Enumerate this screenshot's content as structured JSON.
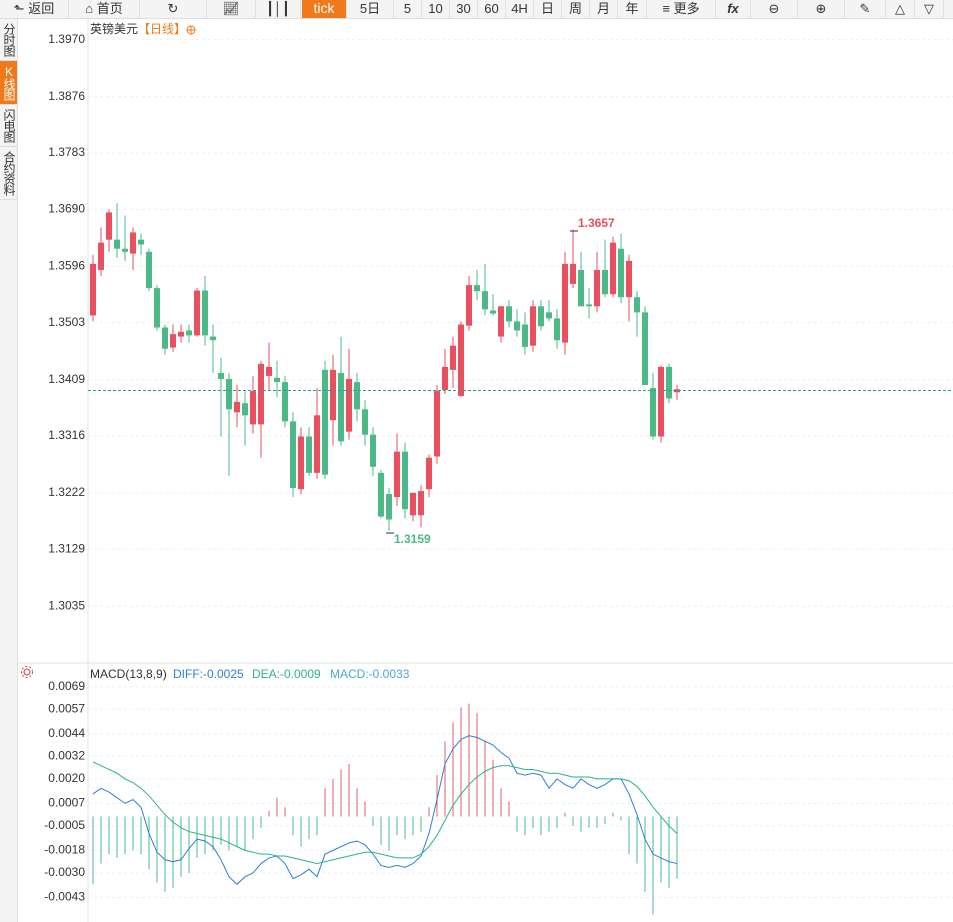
{
  "toolbar": {
    "items": [
      "返回",
      "首页",
      "tick",
      "5日",
      "5",
      "10",
      "30",
      "60",
      "4H",
      "日",
      "周",
      "月",
      "年",
      "更多"
    ]
  },
  "sidebar": {
    "items": [
      "分时图",
      "K线图",
      "闪电图",
      "合约资料"
    ]
  },
  "chart_data": [
    {
      "type": "candlestick",
      "title": "英镑美元",
      "subtitle": "【日线】",
      "annotations": [
        "1.3657",
        "1.3159"
      ],
      "colors": {
        "up": "#e8505f",
        "down": "#4cb987"
      },
      "price_line": 1.3391,
      "price_line_color": "#2a9d9d",
      "ylim": [
        1.2946,
        1.4006
      ],
      "yticks": [
        {
          "value": 1.397,
          "label": "1.3970"
        },
        1.3876,
        1.3783,
        {
          "value": 1.369,
          "label": "1.3690"
        },
        1.3596,
        1.3503,
        1.3409,
        1.3316,
        1.3222,
        1.3129,
        1.3035
      ],
      "grid": true,
      "open": [
        1.3515,
        1.359,
        1.364,
        1.364,
        1.3625,
        1.3617,
        1.364,
        1.362,
        1.356,
        1.3495,
        1.3462,
        1.348,
        1.349,
        1.3482,
        1.3556,
        1.348,
        1.342,
        1.341,
        1.3355,
        1.337,
        1.3335,
        1.3335,
        1.3415,
        1.3412,
        1.3405,
        1.334,
        1.3228,
        1.3315,
        1.3255,
        1.3425,
        1.3342,
        1.342,
        1.3323,
        1.3405,
        1.336,
        1.3318,
        1.3255,
        1.322,
        1.3215,
        1.329,
        1.3185,
        1.3185,
        1.3228,
        1.3282,
        1.3392,
        1.3425,
        1.3382,
        1.3498,
        1.3565,
        1.3555,
        1.3523,
        1.348,
        1.353,
        1.3505,
        1.35,
        1.3465,
        1.353,
        1.352,
        1.351,
        1.347,
        1.3567,
        1.359,
        1.3533,
        1.353,
        1.359,
        1.355,
        1.3625,
        1.3545,
        1.3545,
        1.352,
        1.3395,
        1.3315,
        1.343,
        1.3388
      ],
      "high": [
        1.3615,
        1.366,
        1.369,
        1.37,
        1.368,
        1.366,
        1.365,
        1.3625,
        1.3565,
        1.35,
        1.35,
        1.35,
        1.35,
        1.356,
        1.358,
        1.35,
        1.3445,
        1.342,
        1.34,
        1.339,
        1.3415,
        1.344,
        1.347,
        1.344,
        1.3415,
        1.3355,
        1.333,
        1.333,
        1.3395,
        1.344,
        1.345,
        1.348,
        1.346,
        1.342,
        1.3375,
        1.333,
        1.326,
        1.323,
        1.332,
        1.3305,
        1.322,
        1.3235,
        1.3285,
        1.34,
        1.346,
        1.348,
        1.3505,
        1.358,
        1.359,
        1.36,
        1.355,
        1.353,
        1.354,
        1.3525,
        1.352,
        1.354,
        1.354,
        1.354,
        1.3525,
        1.362,
        1.3657,
        1.362,
        1.356,
        1.362,
        1.364,
        1.3645,
        1.365,
        1.3615,
        1.3555,
        1.353,
        1.342,
        1.3432,
        1.3435,
        1.34
      ],
      "low": [
        1.3505,
        1.358,
        1.362,
        1.361,
        1.3605,
        1.359,
        1.3615,
        1.3555,
        1.349,
        1.345,
        1.3455,
        1.347,
        1.347,
        1.348,
        1.3465,
        1.342,
        1.3315,
        1.325,
        1.333,
        1.33,
        1.332,
        1.328,
        1.339,
        1.338,
        1.333,
        1.3215,
        1.322,
        1.325,
        1.3245,
        1.3245,
        1.33,
        1.33,
        1.331,
        1.334,
        1.33,
        1.325,
        1.318,
        1.3159,
        1.32,
        1.318,
        1.3175,
        1.3165,
        1.3215,
        1.327,
        1.3385,
        1.3395,
        1.338,
        1.349,
        1.354,
        1.3515,
        1.3515,
        1.347,
        1.3495,
        1.348,
        1.345,
        1.3455,
        1.349,
        1.3505,
        1.346,
        1.345,
        1.356,
        1.353,
        1.351,
        1.352,
        1.3545,
        1.3545,
        1.3535,
        1.3505,
        1.348,
        1.34,
        1.331,
        1.3305,
        1.337,
        1.3375
      ],
      "close": [
        1.36,
        1.3635,
        1.3685,
        1.3625,
        1.362,
        1.3652,
        1.3632,
        1.356,
        1.3495,
        1.346,
        1.3484,
        1.3488,
        1.3482,
        1.3556,
        1.3482,
        1.3474,
        1.341,
        1.336,
        1.3372,
        1.335,
        1.339,
        1.3435,
        1.343,
        1.3405,
        1.334,
        1.323,
        1.3315,
        1.3255,
        1.335,
        1.3252,
        1.3425,
        1.3307,
        1.341,
        1.336,
        1.3318,
        1.3265,
        1.3183,
        1.3178,
        1.329,
        1.3195,
        1.3222,
        1.3225,
        1.328,
        1.339,
        1.343,
        1.3465,
        1.35,
        1.3565,
        1.3555,
        1.3525,
        1.3518,
        1.353,
        1.3505,
        1.349,
        1.3463,
        1.353,
        1.3497,
        1.351,
        1.3474,
        1.36,
        1.36,
        1.353,
        1.353,
        1.359,
        1.355,
        1.3635,
        1.3545,
        1.3605,
        1.352,
        1.34,
        1.3315,
        1.343,
        1.3378,
        1.3393
      ]
    },
    {
      "type": "macd",
      "title": "MACD(13,8,9)",
      "ylim": [
        -0.0055,
        0.008
      ],
      "yticks": [
        0.0069,
        0.0057,
        0.0044,
        0.0032,
        {
          "value": 0.002,
          "label": "0.0020"
        },
        0.0007,
        -0.0005,
        -0.0018,
        {
          "value": -0.003,
          "label": "-0.0030"
        },
        -0.0043
      ],
      "grid": true,
      "series": [
        {
          "label": "DIFF:-0.0025",
          "color": "#2f7fd6",
          "kind": "line",
          "values": [
            0.0012,
            0.0015,
            0.0013,
            0.001,
            0.0007,
            0.0009,
            0.0005,
            -0.0009,
            -0.0019,
            -0.0023,
            -0.0024,
            -0.0023,
            -0.0017,
            -0.0012,
            -0.0013,
            -0.0016,
            -0.0023,
            -0.0032,
            -0.0036,
            -0.0032,
            -0.003,
            -0.0025,
            -0.0022,
            -0.0021,
            -0.0025,
            -0.0033,
            -0.0031,
            -0.0028,
            -0.0032,
            -0.002,
            -0.0018,
            -0.0016,
            -0.0014,
            -0.0013,
            -0.0015,
            -0.002,
            -0.0026,
            -0.0027,
            -0.0026,
            -0.0027,
            -0.0025,
            -0.0021,
            -0.0009,
            0.0009,
            0.0028,
            0.0036,
            0.0041,
            0.0043,
            0.0042,
            0.004,
            0.0038,
            0.0034,
            0.0031,
            0.0023,
            0.0022,
            0.0023,
            0.0022,
            0.0015,
            0.002,
            0.0017,
            0.0015,
            0.002,
            0.0017,
            0.0015,
            0.0017,
            0.002,
            0.002,
            0.0012,
            0.0001,
            -0.0012,
            -0.002,
            -0.0022,
            -0.0024,
            -0.0025
          ]
        },
        {
          "label": "DEA:-0.0009",
          "color": "#2bb38a",
          "kind": "line",
          "values": [
            0.0029,
            0.0027,
            0.0025,
            0.0023,
            0.002,
            0.0018,
            0.0015,
            0.0011,
            0.0006,
            0.0001,
            -0.0003,
            -0.0006,
            -0.0008,
            -0.0009,
            -0.001,
            -0.0011,
            -0.0012,
            -0.0014,
            -0.0016,
            -0.0018,
            -0.0019,
            -0.002,
            -0.002,
            -0.0021,
            -0.0021,
            -0.0022,
            -0.0023,
            -0.0024,
            -0.0025,
            -0.0024,
            -0.0023,
            -0.0022,
            -0.0021,
            -0.002,
            -0.0019,
            -0.0019,
            -0.002,
            -0.0021,
            -0.0022,
            -0.0022,
            -0.0022,
            -0.002,
            -0.0016,
            -0.001,
            -0.0002,
            0.0006,
            0.0012,
            0.0017,
            0.0021,
            0.0024,
            0.0026,
            0.0027,
            0.0027,
            0.0026,
            0.0025,
            0.0025,
            0.0024,
            0.0023,
            0.0023,
            0.0022,
            0.0021,
            0.0021,
            0.0021,
            0.002,
            0.002,
            0.002,
            0.002,
            0.0019,
            0.0016,
            0.0011,
            0.0005,
            0.0,
            -0.0005,
            -0.0009
          ]
        },
        {
          "label": "MACD:-0.0033",
          "color": "#4aa8d8",
          "kind": "histogram",
          "colors": {
            "up": "#e06070",
            "down": "#4cb987"
          },
          "values": [
            -0.0036,
            -0.0025,
            -0.002,
            -0.0022,
            -0.002,
            -0.0018,
            -0.002,
            -0.0028,
            -0.0035,
            -0.004,
            -0.0038,
            -0.0032,
            -0.003,
            -0.0022,
            -0.002,
            -0.0018,
            -0.0015,
            -0.0018,
            -0.0016,
            -0.0018,
            -0.0012,
            -0.0006,
            0.0003,
            0.001,
            0.0005,
            -0.001,
            -0.0016,
            -0.0012,
            -0.001,
            0.0015,
            0.002,
            0.0025,
            0.0028,
            0.0015,
            0.0008,
            -0.0005,
            -0.0015,
            -0.0018,
            -0.001,
            -0.0012,
            -0.001,
            -0.0008,
            0.0005,
            0.0022,
            0.004,
            0.005,
            0.0058,
            0.006,
            0.0055,
            0.004,
            0.003,
            0.0015,
            0.0008,
            -0.0008,
            -0.001,
            -0.0006,
            -0.001,
            -0.0008,
            -0.0006,
            0.0002,
            -0.0005,
            -0.0008,
            -0.0006,
            -0.0006,
            -0.0004,
            0.0002,
            -0.0002,
            -0.002,
            -0.0025,
            -0.004,
            -0.0052,
            -0.0035,
            -0.0038,
            -0.0033
          ]
        }
      ]
    }
  ]
}
